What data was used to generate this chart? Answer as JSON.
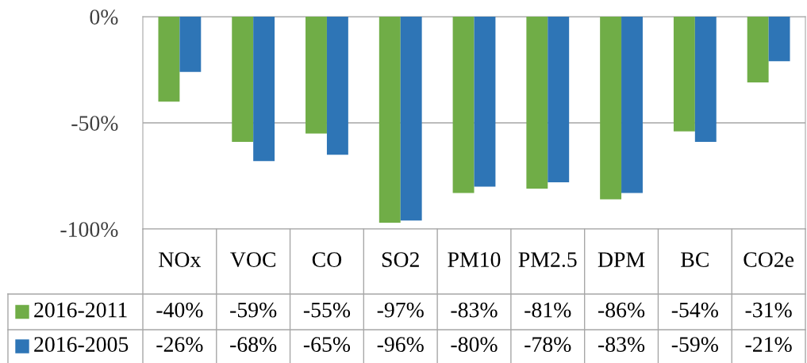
{
  "chart_data": {
    "type": "bar",
    "categories": [
      "NOx",
      "VOC",
      "CO",
      "SO2",
      "PM10",
      "PM2.5",
      "DPM",
      "BC",
      "CO2e"
    ],
    "series": [
      {
        "name": "2016-2011",
        "color": "#70ad47",
        "values": [
          -40,
          -59,
          -55,
          -97,
          -83,
          -81,
          -86,
          -54,
          -31
        ],
        "value_labels": [
          "-40%",
          "-59%",
          "-55%",
          "-97%",
          "-83%",
          "-81%",
          "-86%",
          "-54%",
          "-31%"
        ]
      },
      {
        "name": "2016-2005",
        "color": "#2e75b6",
        "values": [
          -26,
          -68,
          -65,
          -96,
          -80,
          -78,
          -83,
          -59,
          -21
        ],
        "value_labels": [
          "-26%",
          "-68%",
          "-65%",
          "-96%",
          "-80%",
          "-78%",
          "-83%",
          "-59%",
          "-21%"
        ]
      }
    ],
    "ylim": [
      -100,
      0
    ],
    "yticks": [
      {
        "value": -100,
        "label": "-100%"
      },
      {
        "value": -50,
        "label": "-50%"
      },
      {
        "value": 0,
        "label": "0%"
      }
    ],
    "grid": "y",
    "legend": "bottom"
  }
}
